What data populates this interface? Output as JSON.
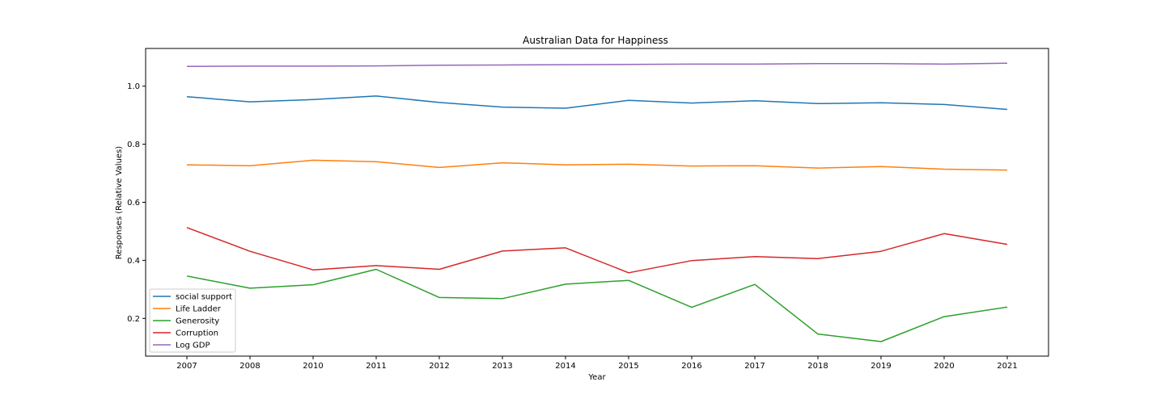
{
  "chart_data": {
    "type": "line",
    "title": "Australian Data for Happiness",
    "xlabel": "Year",
    "ylabel": "Responses (Relative Values)",
    "categories": [
      "2007",
      "2008",
      "2010",
      "2011",
      "2012",
      "2013",
      "2014",
      "2015",
      "2016",
      "2017",
      "2018",
      "2019",
      "2020",
      "2021"
    ],
    "ylim": [
      0.07,
      1.13
    ],
    "yticks": [
      "0.2",
      "0.4",
      "0.6",
      "0.8",
      "1.0"
    ],
    "grid": false,
    "legend_position": "lower-left",
    "series": [
      {
        "name": "social support",
        "color": "#1f77b4",
        "values": [
          0.964,
          0.946,
          0.954,
          0.966,
          0.944,
          0.928,
          0.924,
          0.951,
          0.942,
          0.95,
          0.94,
          0.943,
          0.937,
          0.92
        ]
      },
      {
        "name": "Life Ladder",
        "color": "#ff7f0e",
        "values": [
          0.729,
          0.726,
          0.745,
          0.74,
          0.72,
          0.736,
          0.729,
          0.731,
          0.725,
          0.726,
          0.718,
          0.723,
          0.714,
          0.711
        ]
      },
      {
        "name": "Generosity",
        "color": "#2ca02c",
        "values": [
          0.346,
          0.304,
          0.316,
          0.369,
          0.272,
          0.268,
          0.318,
          0.331,
          0.238,
          0.317,
          0.146,
          0.12,
          0.206,
          0.239
        ]
      },
      {
        "name": "Corruption",
        "color": "#d62728",
        "values": [
          0.513,
          0.431,
          0.367,
          0.382,
          0.369,
          0.432,
          0.443,
          0.357,
          0.399,
          0.413,
          0.406,
          0.431,
          0.492,
          0.455
        ]
      },
      {
        "name": "Log GDP",
        "color": "#9467bd",
        "values": [
          1.068,
          1.069,
          1.069,
          1.07,
          1.072,
          1.073,
          1.074,
          1.075,
          1.076,
          1.076,
          1.078,
          1.078,
          1.076,
          1.079
        ]
      }
    ]
  }
}
